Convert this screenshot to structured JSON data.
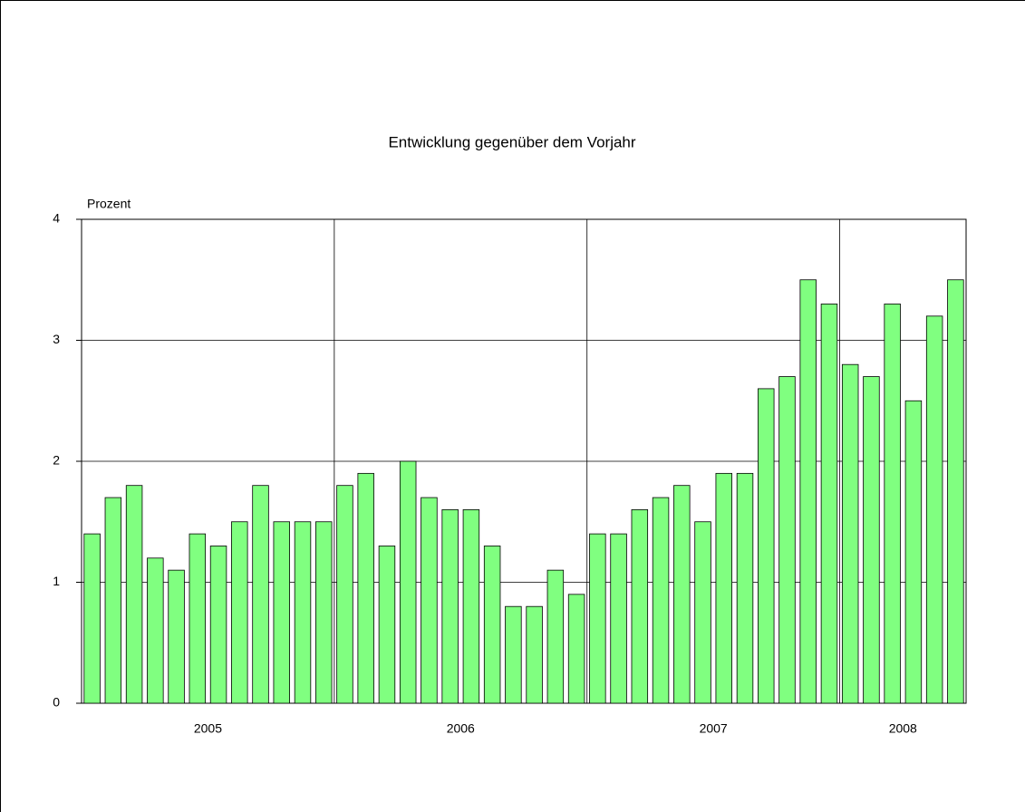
{
  "chart_data": {
    "type": "bar",
    "title": "Entwicklung gegenüber dem Vorjahr",
    "y_label": "Prozent",
    "categories": [
      null,
      null,
      null,
      null,
      null,
      null,
      null,
      null,
      null,
      null,
      null,
      null,
      null,
      null,
      null,
      null,
      null,
      null,
      null,
      null,
      null,
      null,
      null,
      null,
      null,
      null,
      null,
      null,
      null,
      null,
      null,
      null,
      null,
      null,
      null,
      null,
      null,
      null,
      null,
      null,
      null,
      null
    ],
    "x_groups": [
      {
        "label": "2005",
        "span": 12
      },
      {
        "label": "2006",
        "span": 12
      },
      {
        "label": "2007",
        "span": 12
      },
      {
        "label": "2008",
        "span": 6
      }
    ],
    "values": [
      1.4,
      1.7,
      1.8,
      1.2,
      1.1,
      1.4,
      1.3,
      1.5,
      1.8,
      1.5,
      1.5,
      1.5,
      1.8,
      1.9,
      1.3,
      2.0,
      1.7,
      1.6,
      1.6,
      1.3,
      0.8,
      0.8,
      1.1,
      0.9,
      1.4,
      1.4,
      1.6,
      1.7,
      1.8,
      1.5,
      1.9,
      1.9,
      2.6,
      2.7,
      3.5,
      3.3,
      2.8,
      2.7,
      3.3,
      2.5,
      3.2,
      3.5
    ],
    "color": "#80ff80",
    "ylim": [
      0,
      4
    ],
    "yticks": [
      0,
      1,
      2,
      3,
      4
    ],
    "grid": true
  }
}
